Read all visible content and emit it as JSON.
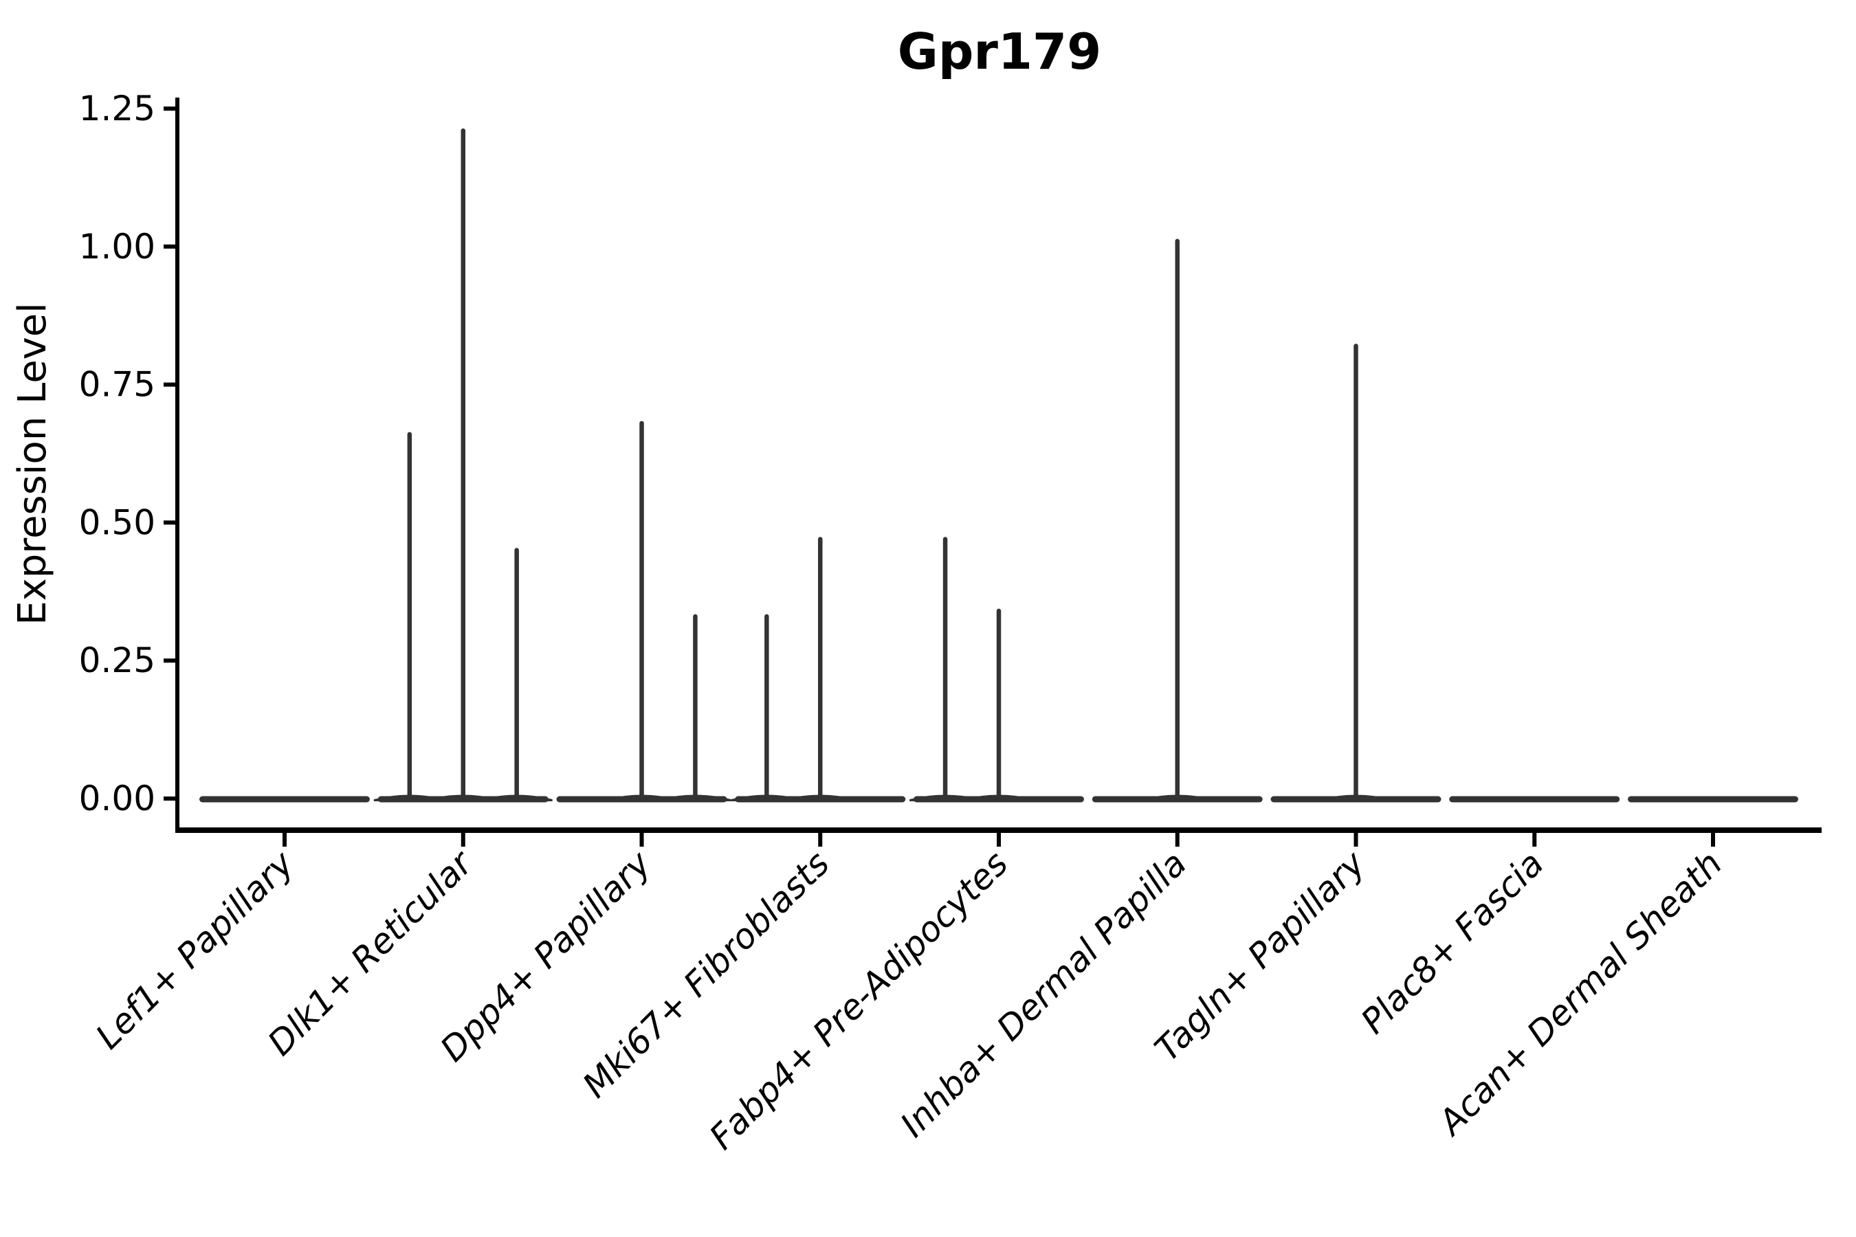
{
  "chart_data": {
    "type": "violin",
    "title": "Gpr179",
    "xlabel": "",
    "ylabel": "Expression Level",
    "categories": [
      "Lef1+ Papillary",
      "Dlk1+ Reticular",
      "Dpp4+ Papillary",
      "Mki67+ Fibroblasts",
      "Fabp4+ Pre-Adipocytes",
      "Inhba+ Dermal Papilla",
      "Tagln+ Papillary",
      "Plac8+ Fascia",
      "Acan+ Dermal Sheath"
    ],
    "ytick_labels": [
      "0.00",
      "0.25",
      "0.50",
      "0.75",
      "1.00",
      "1.25"
    ],
    "ytick_values": [
      0.0,
      0.25,
      0.5,
      0.75,
      1.0,
      1.25
    ],
    "ylim": [
      -0.057,
      1.27
    ],
    "grid": false,
    "legend_position": "none",
    "violin_fill_color": "#333333",
    "axis_color": "#000000",
    "baseline_half_width": 0.46,
    "violins": [
      {
        "category": "Lef1+ Papillary",
        "baseline_value": 0,
        "spikes": []
      },
      {
        "category": "Dlk1+ Reticular",
        "baseline_value": 0,
        "spikes": [
          {
            "offset": -0.3,
            "value": 0.66
          },
          {
            "offset": 0.0,
            "value": 1.21
          },
          {
            "offset": 0.3,
            "value": 0.45
          }
        ]
      },
      {
        "category": "Dpp4+ Papillary",
        "baseline_value": 0,
        "spikes": [
          {
            "offset": 0.0,
            "value": 0.68
          },
          {
            "offset": 0.3,
            "value": 0.33
          }
        ]
      },
      {
        "category": "Mki67+ Fibroblasts",
        "baseline_value": 0,
        "spikes": [
          {
            "offset": -0.3,
            "value": 0.33
          },
          {
            "offset": 0.0,
            "value": 0.47
          }
        ]
      },
      {
        "category": "Fabp4+ Pre-Adipocytes",
        "baseline_value": 0,
        "spikes": [
          {
            "offset": -0.3,
            "value": 0.47
          },
          {
            "offset": 0.0,
            "value": 0.34
          }
        ]
      },
      {
        "category": "Inhba+ Dermal Papilla",
        "baseline_value": 0,
        "spikes": [
          {
            "offset": 0.0,
            "value": 1.01
          }
        ]
      },
      {
        "category": "Tagln+ Papillary",
        "baseline_value": 0,
        "spikes": [
          {
            "offset": 0.0,
            "value": 0.82
          }
        ]
      },
      {
        "category": "Plac8+ Fascia",
        "baseline_value": 0,
        "spikes": []
      },
      {
        "category": "Acan+ Dermal Sheath",
        "baseline_value": 0,
        "spikes": []
      }
    ]
  }
}
